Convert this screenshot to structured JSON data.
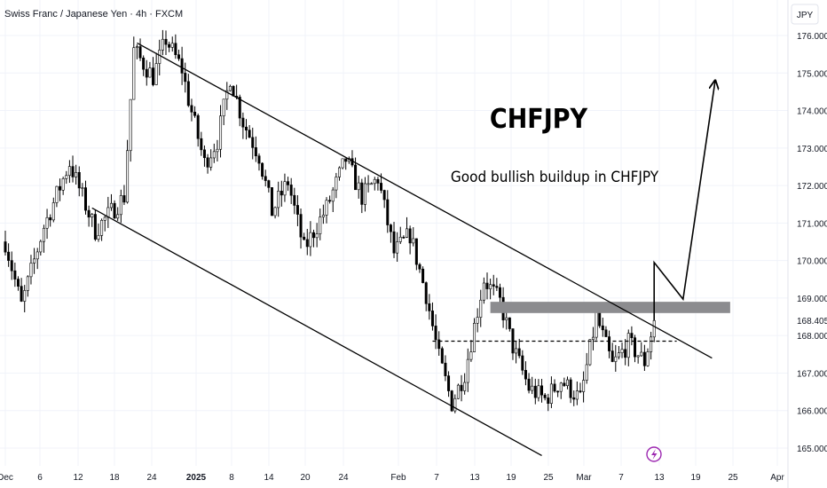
{
  "header": {
    "symbol_title": "Swiss Franc / Japanese Yen · 4h · FXCM",
    "currency_button": "JPY"
  },
  "annotations": {
    "headline": "CHFJPY",
    "caption": "Good bullish buildup in CHFJPY"
  },
  "colors": {
    "candle": "#000000",
    "background": "#ffffff",
    "grid": "#f0f3fa",
    "zone": "#8c8c8f",
    "icon_accent": "#9c27b0"
  },
  "chart_data": {
    "type": "candlestick",
    "instrument": "CHFJPY",
    "timeframe": "4h",
    "ylim": [
      164.5,
      176.2
    ],
    "y_ticks": [
      "165.000",
      "166.000",
      "167.000",
      "168.000",
      "169.000",
      "170.000",
      "171.000",
      "172.000",
      "173.000",
      "174.000",
      "175.000",
      "176.000"
    ],
    "price_label": "168.405",
    "x_ticks": [
      "Dec",
      "6",
      "12",
      "18",
      "24",
      "2025",
      "8",
      "14",
      "20",
      "24",
      "Feb",
      "7",
      "13",
      "19",
      "25",
      "Mar",
      "7",
      "13",
      "19",
      "25",
      "Apr"
    ],
    "price_path": [
      [
        0,
        170.5
      ],
      [
        5,
        168.8
      ],
      [
        12,
        170.9
      ],
      [
        20,
        172.6
      ],
      [
        28,
        170.8
      ],
      [
        37,
        171.7
      ],
      [
        40,
        175.6
      ],
      [
        46,
        174.9
      ],
      [
        50,
        175.9
      ],
      [
        55,
        175.1
      ],
      [
        57,
        174.3
      ],
      [
        62,
        172.6
      ],
      [
        66,
        173.2
      ],
      [
        70,
        174.9
      ],
      [
        74,
        173.7
      ],
      [
        79,
        172.8
      ],
      [
        83,
        171.3
      ],
      [
        88,
        172.1
      ],
      [
        93,
        170.3
      ],
      [
        100,
        171.4
      ],
      [
        106,
        172.7
      ],
      [
        111,
        171.7
      ],
      [
        116,
        172.2
      ],
      [
        121,
        170.2
      ],
      [
        126,
        170.7
      ],
      [
        131,
        169.1
      ],
      [
        135,
        167.4
      ],
      [
        139,
        166.2
      ],
      [
        143,
        167.0
      ],
      [
        149,
        169.5
      ],
      [
        154,
        168.9
      ],
      [
        158,
        167.7
      ],
      [
        163,
        166.6
      ],
      [
        168,
        166.3
      ],
      [
        173,
        166.8
      ],
      [
        179,
        166.3
      ],
      [
        184,
        168.5
      ],
      [
        189,
        167.2
      ],
      [
        194,
        167.8
      ],
      [
        199,
        167.3
      ],
      [
        202,
        168.4
      ]
    ],
    "drawings": {
      "channel_upper": [
        [
          41,
          175.8
        ],
        [
          220,
          167.4
        ]
      ],
      "channel_lower": [
        [
          27,
          171.4
        ],
        [
          167,
          164.8
        ]
      ],
      "resistance_zone": [
        168.6,
        168.9
      ],
      "support_dashed": 167.85,
      "forecast_arrow": [
        [
          202,
          168.4
        ],
        [
          202,
          169.95
        ],
        [
          211,
          168.97
        ],
        [
          221,
          174.8
        ]
      ]
    }
  }
}
